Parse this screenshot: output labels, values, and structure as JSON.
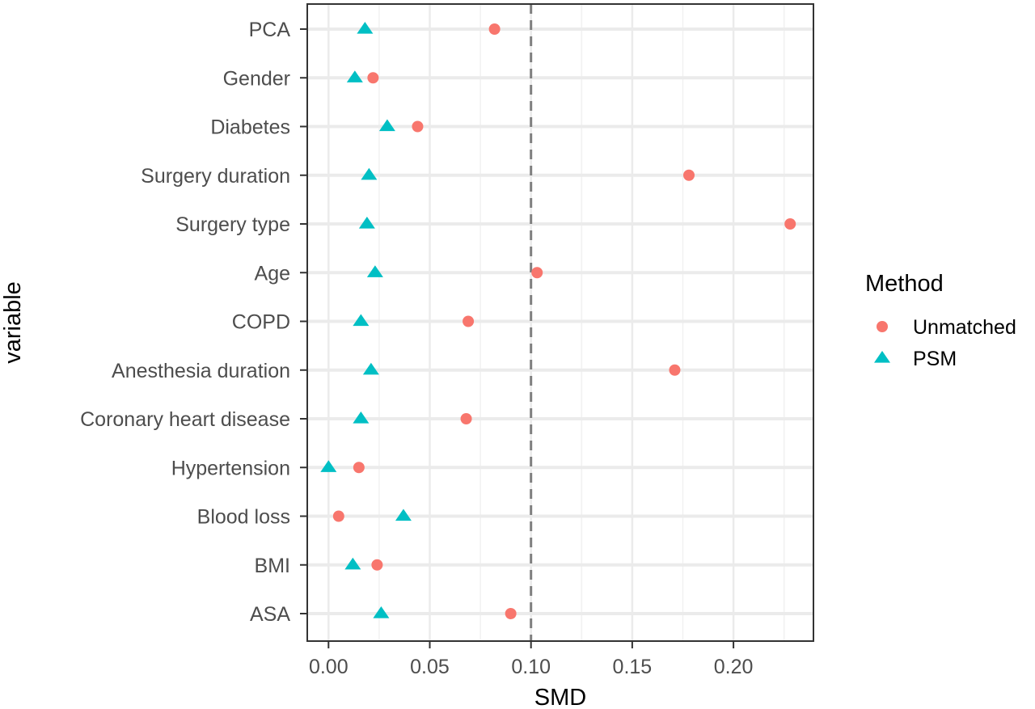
{
  "chart_data": {
    "type": "scatter",
    "xlabel": "SMD",
    "ylabel": "variable",
    "xlim": [
      -0.0105,
      0.2395
    ],
    "xticks": [
      0.0,
      0.05,
      0.1,
      0.15,
      0.2
    ],
    "xtick_labels": [
      "0.00",
      "0.05",
      "0.10",
      "0.15",
      "0.20"
    ],
    "grid": true,
    "reference_line": {
      "x": 0.1,
      "style": "dashed"
    },
    "categories": [
      "PCA",
      "Gender",
      "Diabetes",
      "Surgery duration",
      "Surgery type",
      "Age",
      "COPD",
      "Anesthesia duration",
      "Coronary heart disease",
      "Hypertension",
      "Blood loss",
      "BMI",
      "ASA"
    ],
    "series": [
      {
        "name": "Unmatched",
        "marker": "circle",
        "color": "#F8766D",
        "values": [
          0.082,
          0.022,
          0.044,
          0.178,
          0.228,
          0.103,
          0.069,
          0.171,
          0.068,
          0.015,
          0.005,
          0.024,
          0.09
        ]
      },
      {
        "name": "PSM",
        "marker": "triangle",
        "color": "#00BFC4",
        "values": [
          0.018,
          0.013,
          0.029,
          0.02,
          0.019,
          0.023,
          0.016,
          0.021,
          0.016,
          0.0,
          0.037,
          0.012,
          0.026
        ]
      }
    ],
    "legend": {
      "title": "Method",
      "position": "right"
    }
  }
}
